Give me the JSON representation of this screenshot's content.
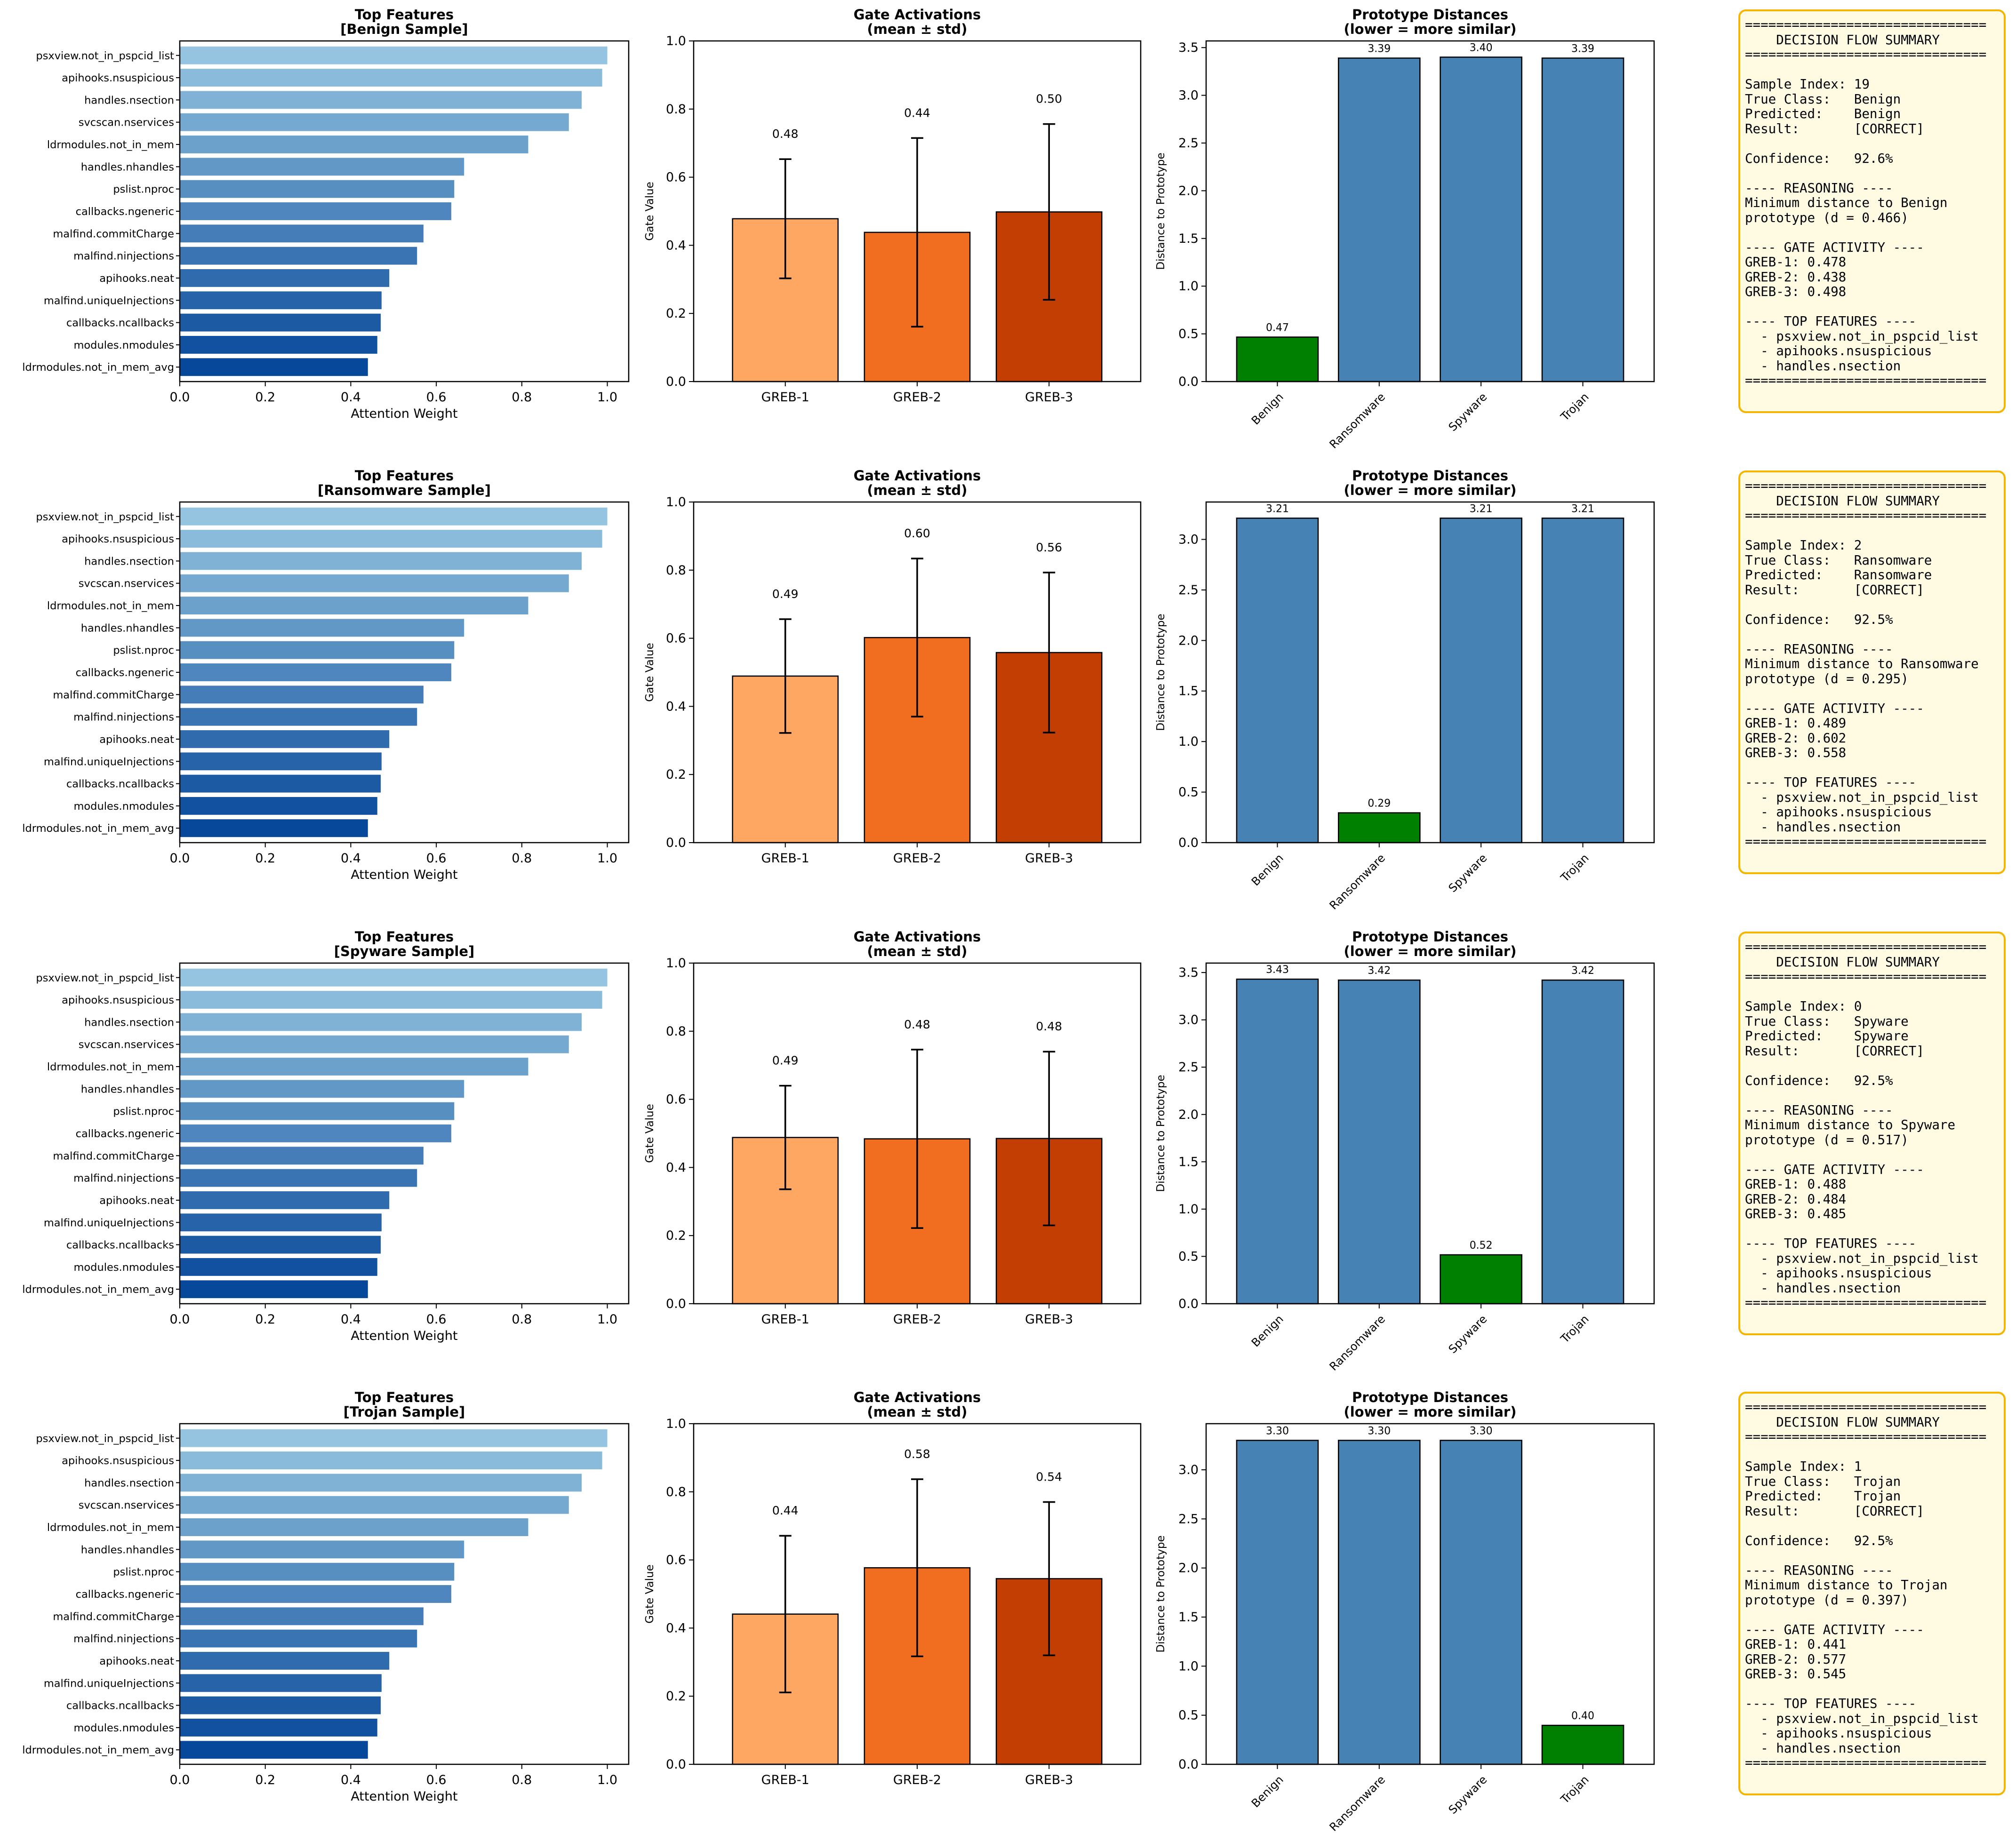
{
  "chart_data": [
    {
      "sample": "Benign",
      "features_panel": {
        "type": "bar",
        "orientation": "horizontal",
        "title": "Top Features",
        "subtitle": "[Benign Sample]",
        "xlabel": "Attention Weight",
        "xlim": [
          0,
          1.05
        ],
        "xticks": [
          "0.0",
          "0.2",
          "0.4",
          "0.6",
          "0.8",
          "1.0"
        ],
        "categories": [
          "psxview.not_in_pspcid_list",
          "apihooks.nsuspicious",
          "handles.nsection",
          "svcscan.nservices",
          "ldrmodules.not_in_mem",
          "handles.nhandles",
          "pslist.nproc",
          "callbacks.ngeneric",
          "malfind.commitCharge",
          "malfind.ninjections",
          "apihooks.neat",
          "malfind.uniqueInjections",
          "callbacks.ncallbacks",
          "modules.nmodules",
          "ldrmodules.not_in_mem_avg"
        ],
        "values": [
          1.0,
          0.988,
          0.94,
          0.91,
          0.815,
          0.665,
          0.642,
          0.635,
          0.57,
          0.555,
          0.49,
          0.472,
          0.47,
          0.462,
          0.44
        ]
      },
      "gates_panel": {
        "type": "bar",
        "title": "Gate Activations",
        "subtitle": "(mean ± std)",
        "ylabel": "Gate Value",
        "ylim": [
          0,
          1.0
        ],
        "yticks": [
          "0.0",
          "0.2",
          "0.4",
          "0.6",
          "0.8",
          "1.0"
        ],
        "categories": [
          "GREB-1",
          "GREB-2",
          "GREB-3"
        ],
        "values": [
          0.478,
          0.438,
          0.498
        ],
        "std": [
          0.175,
          0.277,
          0.258
        ],
        "labels": [
          "0.48",
          "0.44",
          "0.50"
        ]
      },
      "distances_panel": {
        "type": "bar",
        "title": "Prototype Distances",
        "subtitle": "(lower = more similar)",
        "ylabel": "Distance to Prototype",
        "ylim": [
          0,
          3.57
        ],
        "yticks": [
          "0.0",
          "0.5",
          "1.0",
          "1.5",
          "2.0",
          "2.5",
          "3.0",
          "3.5"
        ],
        "categories": [
          "Benign",
          "Ransomware",
          "Spyware",
          "Trojan"
        ],
        "values": [
          0.466,
          3.39,
          3.4,
          3.39
        ],
        "labels": [
          "0.47",
          "3.39",
          "3.40",
          "3.39"
        ],
        "highlight_index": 0
      },
      "summary_text": "===============================\n    DECISION FLOW SUMMARY\n===============================\n\nSample Index: 19\nTrue Class:   Benign\nPredicted:    Benign\nResult:       [CORRECT]\n\nConfidence:   92.6%\n\n---- REASONING ----\nMinimum distance to Benign\nprototype (d = 0.466)\n\n---- GATE ACTIVITY ----\nGREB-1: 0.478\nGREB-2: 0.438\nGREB-3: 0.498\n\n---- TOP FEATURES ----\n  - psxview.not_in_pspcid_list\n  - apihooks.nsuspicious\n  - handles.nsection\n==============================="
    },
    {
      "sample": "Ransomware",
      "features_panel": {
        "type": "bar",
        "orientation": "horizontal",
        "title": "Top Features",
        "subtitle": "[Ransomware Sample]",
        "xlabel": "Attention Weight",
        "xlim": [
          0,
          1.05
        ],
        "xticks": [
          "0.0",
          "0.2",
          "0.4",
          "0.6",
          "0.8",
          "1.0"
        ],
        "categories": [
          "psxview.not_in_pspcid_list",
          "apihooks.nsuspicious",
          "handles.nsection",
          "svcscan.nservices",
          "ldrmodules.not_in_mem",
          "handles.nhandles",
          "pslist.nproc",
          "callbacks.ngeneric",
          "malfind.commitCharge",
          "malfind.ninjections",
          "apihooks.neat",
          "malfind.uniqueInjections",
          "callbacks.ncallbacks",
          "modules.nmodules",
          "ldrmodules.not_in_mem_avg"
        ],
        "values": [
          1.0,
          0.988,
          0.94,
          0.91,
          0.815,
          0.665,
          0.642,
          0.635,
          0.57,
          0.555,
          0.49,
          0.472,
          0.47,
          0.462,
          0.44
        ]
      },
      "gates_panel": {
        "type": "bar",
        "title": "Gate Activations",
        "subtitle": "(mean ± std)",
        "ylabel": "Gate Value",
        "ylim": [
          0,
          1.0
        ],
        "yticks": [
          "0.0",
          "0.2",
          "0.4",
          "0.6",
          "0.8",
          "1.0"
        ],
        "categories": [
          "GREB-1",
          "GREB-2",
          "GREB-3"
        ],
        "values": [
          0.489,
          0.602,
          0.558
        ],
        "std": [
          0.167,
          0.232,
          0.235
        ],
        "labels": [
          "0.49",
          "0.60",
          "0.56"
        ]
      },
      "distances_panel": {
        "type": "bar",
        "title": "Prototype Distances",
        "subtitle": "(lower = more similar)",
        "ylabel": "Distance to Prototype",
        "ylim": [
          0,
          3.37
        ],
        "yticks": [
          "0.0",
          "0.5",
          "1.0",
          "1.5",
          "2.0",
          "2.5",
          "3.0"
        ],
        "categories": [
          "Benign",
          "Ransomware",
          "Spyware",
          "Trojan"
        ],
        "values": [
          3.21,
          0.295,
          3.21,
          3.21
        ],
        "labels": [
          "3.21",
          "0.29",
          "3.21",
          "3.21"
        ],
        "highlight_index": 1
      },
      "summary_text": "===============================\n    DECISION FLOW SUMMARY\n===============================\n\nSample Index: 2\nTrue Class:   Ransomware\nPredicted:    Ransomware\nResult:       [CORRECT]\n\nConfidence:   92.5%\n\n---- REASONING ----\nMinimum distance to Ransomware\nprototype (d = 0.295)\n\n---- GATE ACTIVITY ----\nGREB-1: 0.489\nGREB-2: 0.602\nGREB-3: 0.558\n\n---- TOP FEATURES ----\n  - psxview.not_in_pspcid_list\n  - apihooks.nsuspicious\n  - handles.nsection\n==============================="
    },
    {
      "sample": "Spyware",
      "features_panel": {
        "type": "bar",
        "orientation": "horizontal",
        "title": "Top Features",
        "subtitle": "[Spyware Sample]",
        "xlabel": "Attention Weight",
        "xlim": [
          0,
          1.05
        ],
        "xticks": [
          "0.0",
          "0.2",
          "0.4",
          "0.6",
          "0.8",
          "1.0"
        ],
        "categories": [
          "psxview.not_in_pspcid_list",
          "apihooks.nsuspicious",
          "handles.nsection",
          "svcscan.nservices",
          "ldrmodules.not_in_mem",
          "handles.nhandles",
          "pslist.nproc",
          "callbacks.ngeneric",
          "malfind.commitCharge",
          "malfind.ninjections",
          "apihooks.neat",
          "malfind.uniqueInjections",
          "callbacks.ncallbacks",
          "modules.nmodules",
          "ldrmodules.not_in_mem_avg"
        ],
        "values": [
          1.0,
          0.988,
          0.94,
          0.91,
          0.815,
          0.665,
          0.642,
          0.635,
          0.57,
          0.555,
          0.49,
          0.472,
          0.47,
          0.462,
          0.44
        ]
      },
      "gates_panel": {
        "type": "bar",
        "title": "Gate Activations",
        "subtitle": "(mean ± std)",
        "ylabel": "Gate Value",
        "ylim": [
          0,
          1.0
        ],
        "yticks": [
          "0.0",
          "0.2",
          "0.4",
          "0.6",
          "0.8",
          "1.0"
        ],
        "categories": [
          "GREB-1",
          "GREB-2",
          "GREB-3"
        ],
        "values": [
          0.488,
          0.484,
          0.485
        ],
        "std": [
          0.152,
          0.262,
          0.255
        ],
        "labels": [
          "0.49",
          "0.48",
          "0.48"
        ]
      },
      "distances_panel": {
        "type": "bar",
        "title": "Prototype Distances",
        "subtitle": "(lower = more similar)",
        "ylabel": "Distance to Prototype",
        "ylim": [
          0,
          3.6
        ],
        "yticks": [
          "0.0",
          "0.5",
          "1.0",
          "1.5",
          "2.0",
          "2.5",
          "3.0",
          "3.5"
        ],
        "categories": [
          "Benign",
          "Ransomware",
          "Spyware",
          "Trojan"
        ],
        "values": [
          3.43,
          3.42,
          0.517,
          3.42
        ],
        "labels": [
          "3.43",
          "3.42",
          "0.52",
          "3.42"
        ],
        "highlight_index": 2
      },
      "summary_text": "===============================\n    DECISION FLOW SUMMARY\n===============================\n\nSample Index: 0\nTrue Class:   Spyware\nPredicted:    Spyware\nResult:       [CORRECT]\n\nConfidence:   92.5%\n\n---- REASONING ----\nMinimum distance to Spyware\nprototype (d = 0.517)\n\n---- GATE ACTIVITY ----\nGREB-1: 0.488\nGREB-2: 0.484\nGREB-3: 0.485\n\n---- TOP FEATURES ----\n  - psxview.not_in_pspcid_list\n  - apihooks.nsuspicious\n  - handles.nsection\n==============================="
    },
    {
      "sample": "Trojan",
      "features_panel": {
        "type": "bar",
        "orientation": "horizontal",
        "title": "Top Features",
        "subtitle": "[Trojan Sample]",
        "xlabel": "Attention Weight",
        "xlim": [
          0,
          1.05
        ],
        "xticks": [
          "0.0",
          "0.2",
          "0.4",
          "0.6",
          "0.8",
          "1.0"
        ],
        "categories": [
          "psxview.not_in_pspcid_list",
          "apihooks.nsuspicious",
          "handles.nsection",
          "svcscan.nservices",
          "ldrmodules.not_in_mem",
          "handles.nhandles",
          "pslist.nproc",
          "callbacks.ngeneric",
          "malfind.commitCharge",
          "malfind.ninjections",
          "apihooks.neat",
          "malfind.uniqueInjections",
          "callbacks.ncallbacks",
          "modules.nmodules",
          "ldrmodules.not_in_mem_avg"
        ],
        "values": [
          1.0,
          0.988,
          0.94,
          0.91,
          0.815,
          0.665,
          0.642,
          0.635,
          0.57,
          0.555,
          0.49,
          0.472,
          0.47,
          0.462,
          0.44
        ]
      },
      "gates_panel": {
        "type": "bar",
        "title": "Gate Activations",
        "subtitle": "(mean ± std)",
        "ylabel": "Gate Value",
        "ylim": [
          0,
          1.0
        ],
        "yticks": [
          "0.0",
          "0.2",
          "0.4",
          "0.6",
          "0.8",
          "1.0"
        ],
        "categories": [
          "GREB-1",
          "GREB-2",
          "GREB-3"
        ],
        "values": [
          0.441,
          0.577,
          0.545
        ],
        "std": [
          0.23,
          0.26,
          0.225
        ],
        "labels": [
          "0.44",
          "0.58",
          "0.54"
        ]
      },
      "distances_panel": {
        "type": "bar",
        "title": "Prototype Distances",
        "subtitle": "(lower = more similar)",
        "ylabel": "Distance to Prototype",
        "ylim": [
          0,
          3.47
        ],
        "yticks": [
          "0.0",
          "0.5",
          "1.0",
          "1.5",
          "2.0",
          "2.5",
          "3.0"
        ],
        "categories": [
          "Benign",
          "Ransomware",
          "Spyware",
          "Trojan"
        ],
        "values": [
          3.3,
          3.3,
          3.3,
          0.397
        ],
        "labels": [
          "3.30",
          "3.30",
          "3.30",
          "0.40"
        ],
        "highlight_index": 3
      },
      "summary_text": "===============================\n    DECISION FLOW SUMMARY\n===============================\n\nSample Index: 1\nTrue Class:   Trojan\nPredicted:    Trojan\nResult:       [CORRECT]\n\nConfidence:   92.5%\n\n---- REASONING ----\nMinimum distance to Trojan\nprototype (d = 0.397)\n\n---- GATE ACTIVITY ----\nGREB-1: 0.441\nGREB-2: 0.577\nGREB-3: 0.545\n\n---- TOP FEATURES ----\n  - psxview.not_in_pspcid_list\n  - apihooks.nsuspicious\n  - handles.nsection\n==============================="
    }
  ],
  "colors": {
    "feature_bar_light": "#94c4df",
    "feature_bar_dark": "#08489a",
    "gate_bars": [
      "#fda762",
      "#f16d1f",
      "#c23e03"
    ],
    "distance_bar": "#4682b4",
    "distance_highlight": "#008000",
    "summary_bg": "#fffbe3",
    "summary_border": "#f4b400"
  }
}
